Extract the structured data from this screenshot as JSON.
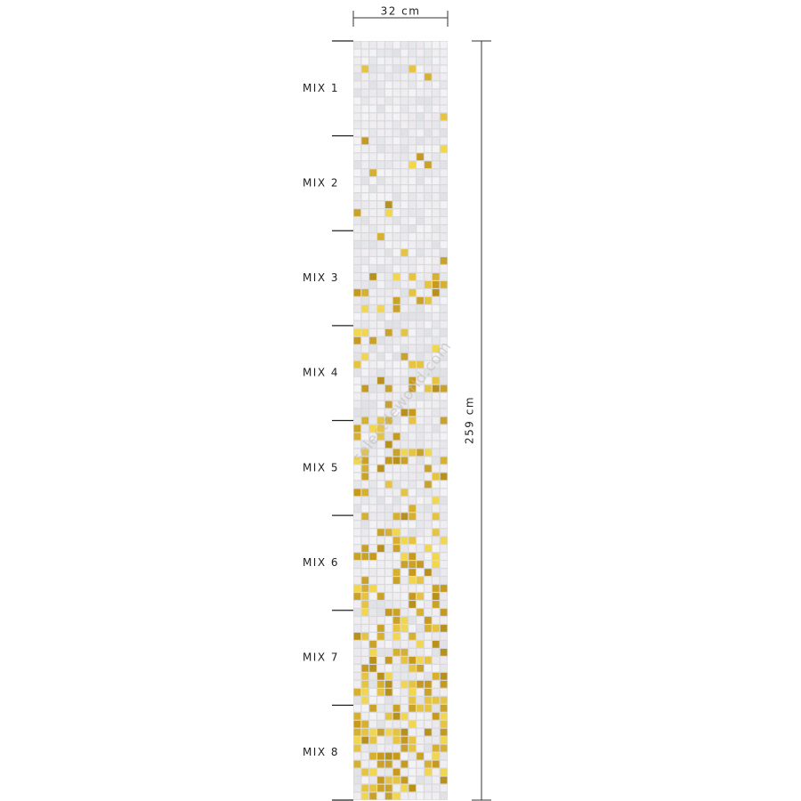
{
  "dimensions": {
    "width": "32 cm",
    "height": "259 cm"
  },
  "sections": [
    "MIX 1",
    "MIX 2",
    "MIX 3",
    "MIX 4",
    "MIX 5",
    "MIX 6",
    "MIX 7",
    "MIX 8"
  ],
  "watermark": "selectileworld.com"
}
